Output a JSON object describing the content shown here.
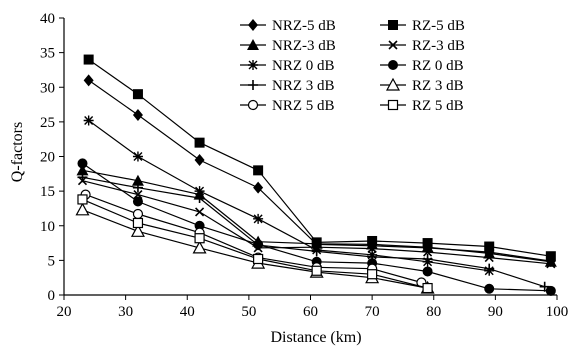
{
  "chart_data": {
    "type": "line",
    "title": "",
    "xlabel": "Distance (km)",
    "ylabel": "Q-factors",
    "xlim": [
      20,
      100
    ],
    "ylim": [
      0,
      40
    ],
    "xticks": [
      20,
      30,
      40,
      50,
      60,
      70,
      80,
      90,
      100
    ],
    "yticks": [
      0,
      5,
      10,
      15,
      20,
      25,
      30,
      35,
      40
    ],
    "grid": false,
    "legend_position": "top-right",
    "legend_columns": 2,
    "colors": {
      "series": "#000000",
      "background": "#ffffff"
    },
    "series": [
      {
        "name": "NRZ-5 dB",
        "marker": "diamond",
        "x": [
          24,
          32,
          42,
          51.5,
          61,
          70,
          79,
          89,
          99
        ],
        "y": [
          31,
          26,
          19.5,
          15.5,
          7.3,
          7.1,
          6.8,
          6.2,
          4.9
        ]
      },
      {
        "name": "RZ-5 dB",
        "marker": "square-filled",
        "x": [
          24,
          32,
          42,
          51.5,
          61,
          70,
          79,
          89,
          99
        ],
        "y": [
          34,
          29,
          22,
          18,
          7.6,
          7.8,
          7.5,
          7.0,
          5.6
        ]
      },
      {
        "name": "NRZ-3 dB",
        "marker": "triangle-filled",
        "x": [
          23,
          32,
          42,
          51.5,
          61,
          70,
          79,
          89,
          99
        ],
        "y": [
          18,
          16.5,
          14.5,
          7.7,
          7.4,
          7.3,
          6.9,
          6.0,
          4.8
        ]
      },
      {
        "name": "RZ-3 dB",
        "marker": "x",
        "x": [
          23,
          32,
          42,
          51.5,
          61,
          70,
          79,
          89,
          99
        ],
        "y": [
          16.5,
          14.5,
          12,
          6.8,
          6.9,
          6.7,
          6.2,
          5.4,
          4.5
        ]
      },
      {
        "name": "NRZ 0 dB",
        "marker": "asterisk",
        "x": [
          24,
          32,
          42,
          51.5,
          61,
          70,
          79,
          89
        ],
        "y": [
          25.2,
          20,
          15,
          11,
          6.5,
          5.8,
          4.8,
          3.5
        ]
      },
      {
        "name": "RZ 0 dB",
        "marker": "circle-filled",
        "x": [
          23,
          32,
          42,
          51.5,
          61,
          70,
          79,
          89,
          99
        ],
        "y": [
          19,
          13.5,
          10,
          7.3,
          4.8,
          4.6,
          3.4,
          0.9,
          0.6
        ]
      },
      {
        "name": "NRZ 3 dB",
        "marker": "plus",
        "x": [
          23,
          32,
          42,
          51.5,
          61,
          70,
          79,
          89,
          98
        ],
        "y": [
          17,
          15.5,
          14,
          7.2,
          6.3,
          5.5,
          5.2,
          3.8,
          1.2
        ]
      },
      {
        "name": "RZ 3 dB",
        "marker": "triangle-open",
        "x": [
          23,
          32,
          42,
          51.5,
          61,
          70,
          79
        ],
        "y": [
          12.3,
          9.2,
          6.8,
          4.6,
          3.3,
          2.5,
          1.0
        ]
      },
      {
        "name": "NRZ 5 dB",
        "marker": "circle-open",
        "x": [
          23.5,
          32,
          42,
          51.5,
          61,
          70,
          78
        ],
        "y": [
          14.5,
          11.7,
          9.0,
          5.4,
          4.0,
          3.8,
          1.8
        ]
      },
      {
        "name": "RZ 5 dB",
        "marker": "square-open",
        "x": [
          23,
          32,
          42,
          51.5,
          61,
          70,
          79
        ],
        "y": [
          13.8,
          10.4,
          8.2,
          5.2,
          3.5,
          3.0,
          1.0
        ]
      }
    ]
  }
}
